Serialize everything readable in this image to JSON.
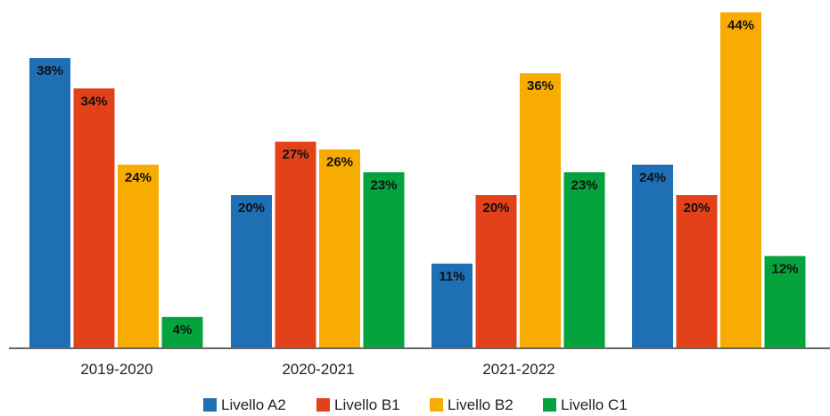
{
  "chart_data": {
    "type": "bar",
    "categories": [
      "2019-2020",
      "2020-2021",
      "2021-2022",
      ""
    ],
    "series": [
      {
        "name": "Livello A2",
        "values": [
          38,
          20,
          11,
          24
        ],
        "labels": [
          "38%",
          "20%",
          "11%",
          "24%"
        ],
        "color": "#1f6fb5"
      },
      {
        "name": "Livello B1",
        "values": [
          34,
          27,
          20,
          20
        ],
        "labels": [
          "34%",
          "27%",
          "20%",
          "20%"
        ],
        "color": "#e3411a"
      },
      {
        "name": "Livello B2",
        "values": [
          24,
          26,
          36,
          44
        ],
        "labels": [
          "24%",
          "26%",
          "36%",
          "44%"
        ],
        "color": "#f8ab00"
      },
      {
        "name": "Livello C1",
        "values": [
          4,
          23,
          23,
          12
        ],
        "labels": [
          "4%",
          "23%",
          "23%",
          "12%"
        ],
        "color": "#05a33d"
      }
    ],
    "title": "",
    "xlabel": "",
    "ylabel": "",
    "ylim": [
      0,
      45
    ],
    "grid": false,
    "legend_position": "bottom"
  }
}
